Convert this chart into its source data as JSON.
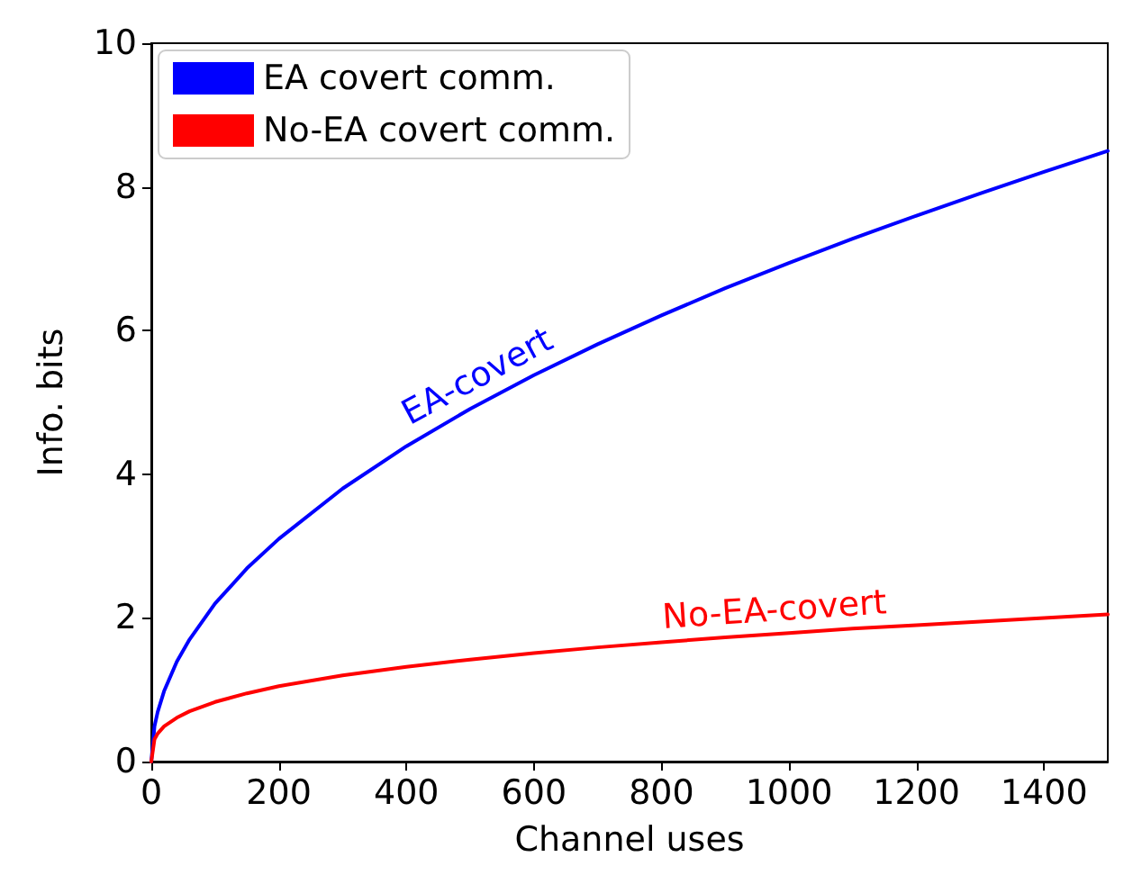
{
  "chart_data": {
    "type": "line",
    "xlabel": "Channel uses",
    "ylabel": "Info. bits",
    "x": [
      0,
      5,
      10,
      20,
      40,
      60,
      100,
      150,
      200,
      300,
      400,
      500,
      600,
      700,
      800,
      900,
      1000,
      1100,
      1200,
      1300,
      1400,
      1500
    ],
    "series": [
      {
        "name": "EA covert comm.",
        "color": "#0000ff",
        "values": [
          0,
          0.49,
          0.69,
          0.98,
          1.39,
          1.7,
          2.2,
          2.69,
          3.1,
          3.8,
          4.39,
          4.91,
          5.38,
          5.81,
          6.21,
          6.59,
          6.94,
          7.28,
          7.6,
          7.91,
          8.21,
          8.5
        ]
      },
      {
        "name": "No-EA covert comm.",
        "color": "#ff0000",
        "values": [
          0,
          0.31,
          0.39,
          0.49,
          0.61,
          0.7,
          0.83,
          0.95,
          1.05,
          1.2,
          1.32,
          1.42,
          1.51,
          1.59,
          1.66,
          1.73,
          1.79,
          1.85,
          1.9,
          1.95,
          2.0,
          2.05
        ]
      }
    ],
    "annotations": [
      {
        "text": "EA-covert",
        "x": 530,
        "y": 5.05
      },
      {
        "text": "No-EA-covert",
        "x": 980,
        "y": 1.76
      }
    ],
    "xlim": [
      0,
      1500
    ],
    "xticks": [
      0,
      200,
      400,
      600,
      800,
      1000,
      1200,
      1400
    ],
    "ylim": [
      0,
      10
    ],
    "yticks": [
      0,
      2,
      4,
      6,
      8,
      10
    ],
    "grid": false,
    "legend": "top left",
    "marker": "none",
    "line_style": "solid"
  }
}
